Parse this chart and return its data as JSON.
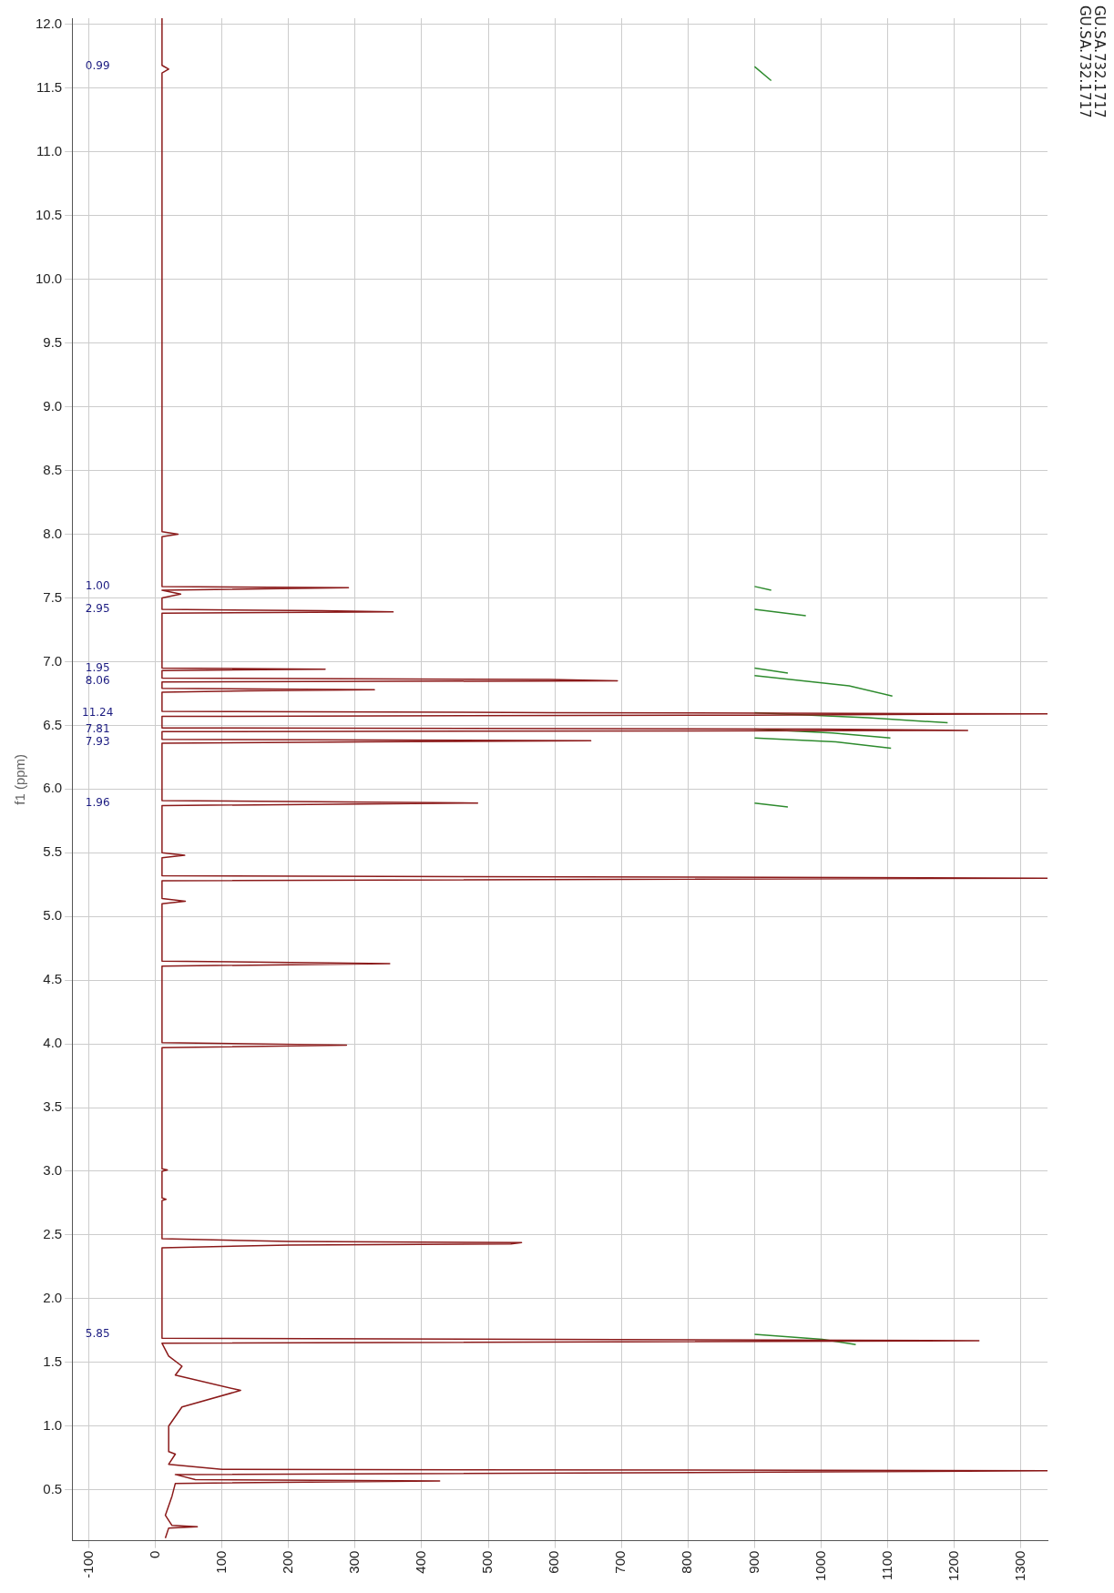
{
  "chart_data": {
    "type": "line",
    "title": "GU.SA.732.1717",
    "subtitle": "GU.SA.732.1717",
    "ylabel": "f1 (ppm)",
    "xlim": [
      -125,
      1340
    ],
    "ylim": [
      0.1,
      12.05
    ],
    "xticks": [
      -100,
      0,
      100,
      200,
      300,
      400,
      500,
      600,
      700,
      800,
      900,
      1000,
      1100,
      1200,
      1300
    ],
    "yticks": [
      0.5,
      {
        "value": 1,
        "label": "1.0"
      },
      1.5,
      {
        "value": 2,
        "label": "2.0"
      },
      2.5,
      {
        "value": 3,
        "label": "3.0"
      },
      3.5,
      {
        "value": 4,
        "label": "4.0"
      },
      4.5,
      {
        "value": 5,
        "label": "5.0"
      },
      5.5,
      {
        "value": 6,
        "label": "6.0"
      },
      6.5,
      {
        "value": 7,
        "label": "7.0"
      },
      7.5,
      {
        "value": 8,
        "label": "8.0"
      },
      8.5,
      {
        "value": 9,
        "label": "9.0"
      },
      9.5,
      {
        "value": 10,
        "label": "10.0"
      },
      10.5,
      {
        "value": 11,
        "label": "11.0"
      },
      11.5,
      {
        "value": 12,
        "label": "12.0"
      }
    ],
    "grid": true,
    "legend": false,
    "marker": "none",
    "line_style": "solid",
    "series": [
      {
        "color": "#8b1a1a",
        "x": [
          10,
          10,
          20,
          10,
          10,
          34,
          10,
          10,
          290,
          10,
          38,
          10,
          10,
          250,
          357,
          10,
          10,
          255,
          10,
          10,
          592,
          694,
          10,
          10,
          329,
          140,
          10,
          10,
          595,
          1340,
          892,
          10,
          10,
          997,
          1220,
          10,
          10,
          654,
          317,
          10,
          10,
          484,
          10,
          10,
          44,
          10,
          10,
          1340,
          10,
          10,
          45,
          10,
          10,
          352,
          10,
          10,
          287,
          10,
          10,
          18,
          10,
          10,
          16,
          10,
          10,
          200,
          550,
          534,
          200,
          10,
          10,
          1237,
          10,
          20,
          40,
          30,
          128,
          40,
          20,
          20,
          30,
          20,
          100,
          1340,
          1005,
          30,
          60,
          427,
          30,
          25,
          15,
          25,
          63,
          20,
          15
        ],
        "values": [
          12.05,
          11.68,
          11.65,
          11.62,
          8.02,
          8,
          7.98,
          7.59,
          7.58,
          7.56,
          7.53,
          7.5,
          7.41,
          7.4,
          7.39,
          7.38,
          6.95,
          6.94,
          6.93,
          6.87,
          6.86,
          6.85,
          6.84,
          6.79,
          6.78,
          6.77,
          6.76,
          6.61,
          6.6,
          6.59,
          6.58,
          6.57,
          6.48,
          6.47,
          6.46,
          6.45,
          6.39,
          6.38,
          6.37,
          6.36,
          5.91,
          5.89,
          5.87,
          5.5,
          5.48,
          5.46,
          5.32,
          5.3,
          5.28,
          5.14,
          5.12,
          5.1,
          4.65,
          4.63,
          4.61,
          4.01,
          3.99,
          3.97,
          3.02,
          3.01,
          3,
          2.79,
          2.78,
          2.77,
          2.47,
          2.45,
          2.44,
          2.43,
          2.42,
          2.4,
          1.69,
          1.67,
          1.65,
          1.55,
          1.47,
          1.4,
          1.28,
          1.15,
          1,
          0.8,
          0.78,
          0.7,
          0.66,
          0.65,
          0.64,
          0.62,
          0.58,
          0.57,
          0.55,
          0.45,
          0.3,
          0.22,
          0.21,
          0.2,
          0.12
        ]
      },
      {
        "color": "#2e8b2e",
        "x": [
          900,
          925
        ],
        "values": [
          11.67,
          11.56
        ]
      },
      {
        "color": "#2e8b2e",
        "x": [
          900,
          925
        ],
        "values": [
          7.59,
          7.56
        ]
      },
      {
        "color": "#2e8b2e",
        "x": [
          900,
          977
        ],
        "values": [
          7.41,
          7.36
        ]
      },
      {
        "color": "#2e8b2e",
        "x": [
          900,
          950
        ],
        "values": [
          6.95,
          6.91
        ]
      },
      {
        "color": "#2e8b2e",
        "x": [
          900,
          1042,
          1107
        ],
        "values": [
          6.89,
          6.81,
          6.73
        ]
      },
      {
        "color": "#2e8b2e",
        "x": [
          900,
          1070,
          1190
        ],
        "values": [
          6.6,
          6.56,
          6.52
        ]
      },
      {
        "color": "#2e8b2e",
        "x": [
          900,
          1017,
          1104
        ],
        "values": [
          6.47,
          6.44,
          6.4
        ]
      },
      {
        "color": "#2e8b2e",
        "x": [
          900,
          1022,
          1105
        ],
        "values": [
          6.4,
          6.37,
          6.32
        ]
      },
      {
        "color": "#2e8b2e",
        "x": [
          900,
          950
        ],
        "values": [
          5.89,
          5.86
        ]
      },
      {
        "color": "#2e8b2e",
        "x": [
          900,
          1002,
          1052
        ],
        "values": [
          1.72,
          1.68,
          1.64
        ]
      }
    ],
    "annotations": [
      "0.99",
      "1.00",
      "2.95",
      "1.95",
      "8.06",
      "11.24",
      "7.81",
      "7.93",
      "1.96",
      "5.85"
    ]
  }
}
